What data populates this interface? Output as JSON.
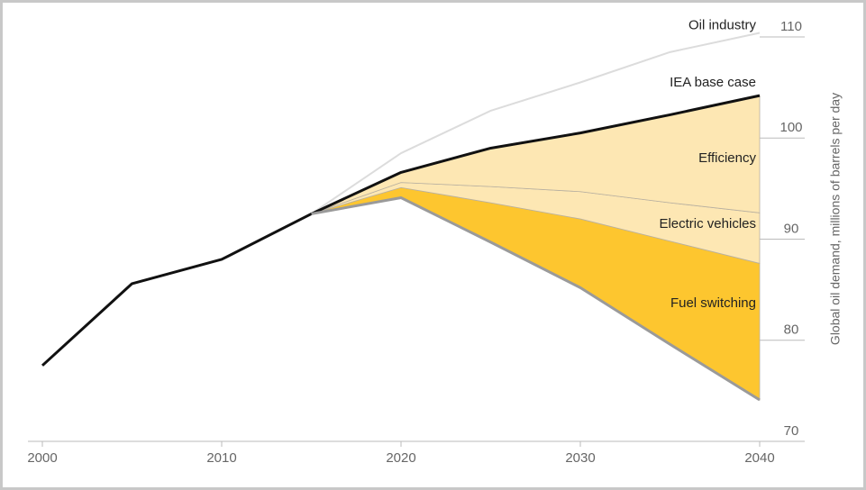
{
  "chart_data": {
    "type": "line",
    "y_axis_label": "Global oil demand, millions of barrels per day",
    "x": [
      2000,
      2005,
      2010,
      2015,
      2020,
      2025,
      2030,
      2035,
      2040
    ],
    "xlim": [
      2000,
      2040
    ],
    "xticks": [
      2000,
      2010,
      2020,
      2030,
      2040
    ],
    "ylim": [
      70,
      110
    ],
    "yticks": [
      70,
      80,
      90,
      100,
      110
    ],
    "series": [
      {
        "name": "Oil industry",
        "type": "line",
        "color": "#dcdcdc",
        "values": [
          null,
          null,
          null,
          92.5,
          98.5,
          102.7,
          105.5,
          108.5,
          110.4
        ]
      },
      {
        "name": "IEA base case",
        "type": "line",
        "color": "#111111",
        "values": [
          77.5,
          85.6,
          88.0,
          92.5,
          96.6,
          99.0,
          100.5,
          102.3,
          104.2
        ]
      },
      {
        "type": "line",
        "color": "#9a9a9a",
        "values": [
          null,
          null,
          null,
          92.5,
          94.1,
          89.7,
          85.2,
          79.6,
          74.1
        ]
      },
      {
        "name": "Fuel switching",
        "type": "area",
        "color": "#fdc62f",
        "values": [
          null,
          null,
          null,
          0,
          1.0,
          3.9,
          6.8,
          10.2,
          13.5
        ]
      },
      {
        "name": "Electric vehicles",
        "type": "area",
        "color": "#fde7b3",
        "values": [
          null,
          null,
          null,
          0,
          0.5,
          1.6,
          2.7,
          3.8,
          5.0
        ]
      },
      {
        "name": "Efficiency",
        "type": "area",
        "color": "#fde7b3",
        "values": [
          null,
          null,
          null,
          0,
          1.0,
          3.8,
          5.8,
          8.7,
          11.6
        ]
      }
    ]
  }
}
